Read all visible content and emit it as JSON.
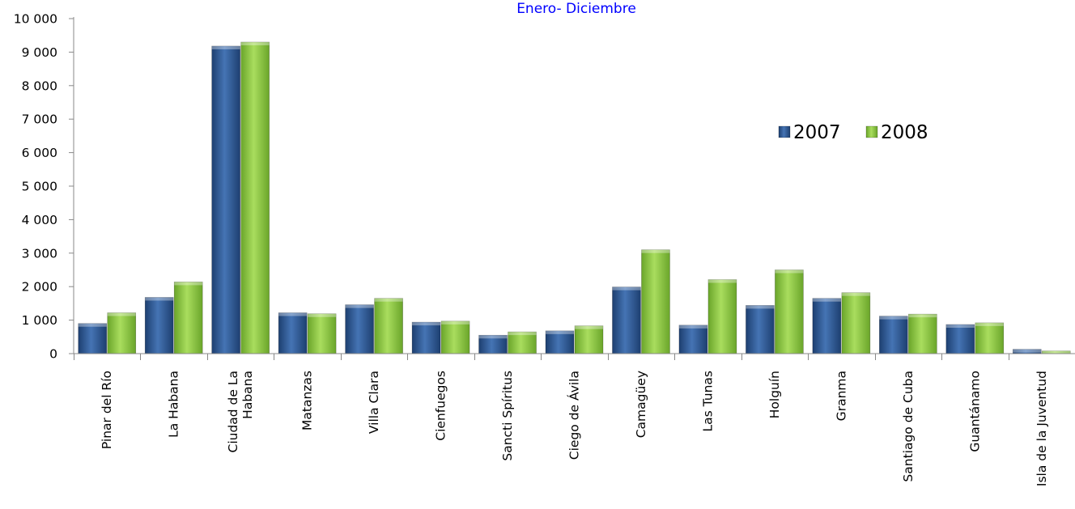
{
  "chart_data": {
    "type": "bar",
    "title": "",
    "subtitle": "Enero- Diciembre",
    "xlabel": "",
    "ylabel": "",
    "ylim": [
      0,
      10000
    ],
    "yticks": [
      0,
      1000,
      2000,
      3000,
      4000,
      5000,
      6000,
      7000,
      8000,
      9000,
      10000
    ],
    "ytick_labels": [
      "0",
      "1 000",
      "2 000",
      "3 000",
      "4 000",
      "5 000",
      "6 000",
      "7 000",
      "8 000",
      "9 000",
      "10 000"
    ],
    "grid": false,
    "legend_position": "right",
    "categories": [
      [
        "Pinar del Río"
      ],
      [
        "La Habana"
      ],
      [
        "Ciudad de La",
        "Habana"
      ],
      [
        "Matanzas"
      ],
      [
        "Villa Clara"
      ],
      [
        "Cienfuegos"
      ],
      [
        "Sancti Spíritus"
      ],
      [
        "Ciego de Ávila"
      ],
      [
        "Camagüey"
      ],
      [
        "Las Tunas"
      ],
      [
        "Holguín"
      ],
      [
        "Granma"
      ],
      [
        "Santiago de Cuba"
      ],
      [
        "Guantánamo"
      ],
      [
        "Isla de la Juventud"
      ]
    ],
    "series": [
      {
        "name": "2007",
        "color": "#2f5d9b",
        "values": [
          900,
          1680,
          9180,
          1220,
          1460,
          940,
          550,
          680,
          1990,
          850,
          1440,
          1650,
          1120,
          870,
          130
        ]
      },
      {
        "name": "2008",
        "color": "#8fca3c",
        "values": [
          1220,
          2140,
          9300,
          1190,
          1650,
          970,
          650,
          830,
          3100,
          2210,
          2500,
          1820,
          1180,
          920,
          80
        ]
      }
    ]
  },
  "colors": {
    "subtitle": "#0000ff",
    "axis": "#888888"
  }
}
